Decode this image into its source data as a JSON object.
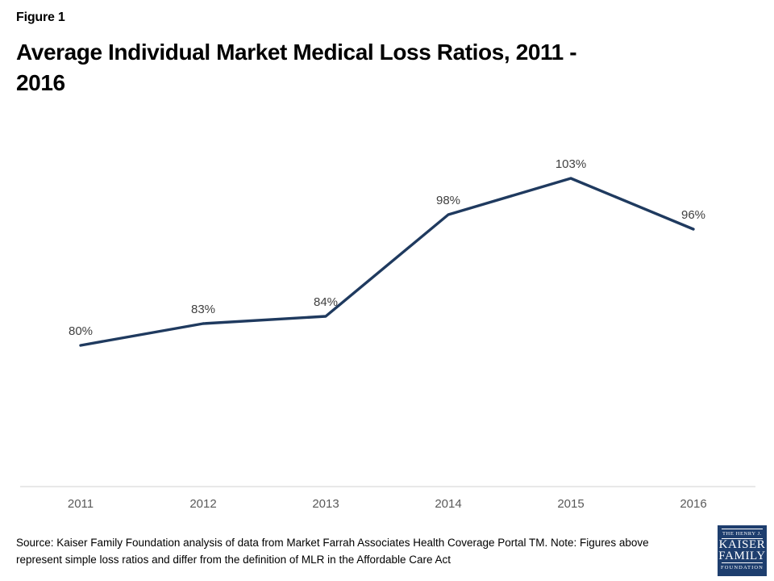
{
  "header": {
    "figure_label": "Figure 1",
    "title": "Average Individual Market Medical Loss Ratios, 2011 - 2016",
    "title_lines": [
      "Average Individual Market Medical Loss Ratios, 2011 -",
      "2016"
    ]
  },
  "chart_data": {
    "type": "line",
    "title": "Average Individual Market Medical Loss Ratios, 2011 - 2016",
    "categories": [
      "2011",
      "2012",
      "2013",
      "2014",
      "2015",
      "2016"
    ],
    "values": [
      80,
      83,
      84,
      98,
      103,
      96
    ],
    "data_labels": [
      "80%",
      "83%",
      "84%",
      "98%",
      "103%",
      "96%"
    ],
    "unit": "%",
    "xlabel": "",
    "ylabel": "",
    "y_axis_visible": false,
    "x_axis_visible": true,
    "grid": false,
    "legend": false,
    "markers": false,
    "line_color": "#1F3A5F",
    "label_color": "#404040",
    "tick_color": "#595959",
    "axis_line_color": "#D9D9D9"
  },
  "footer": {
    "source_lines": [
      "Source: Kaiser Family Foundation analysis of data from Market Farrah Associates Health Coverage Portal TM. Note: Figures above",
      "represent simple loss ratios and differ from the definition of MLR in the Affordable Care Act"
    ],
    "logo": {
      "top": "THE HENRY J.",
      "name1": "KAISER",
      "name2": "FAMILY",
      "bottom": "FOUNDATION",
      "bg_color": "#1E3E6E"
    }
  }
}
